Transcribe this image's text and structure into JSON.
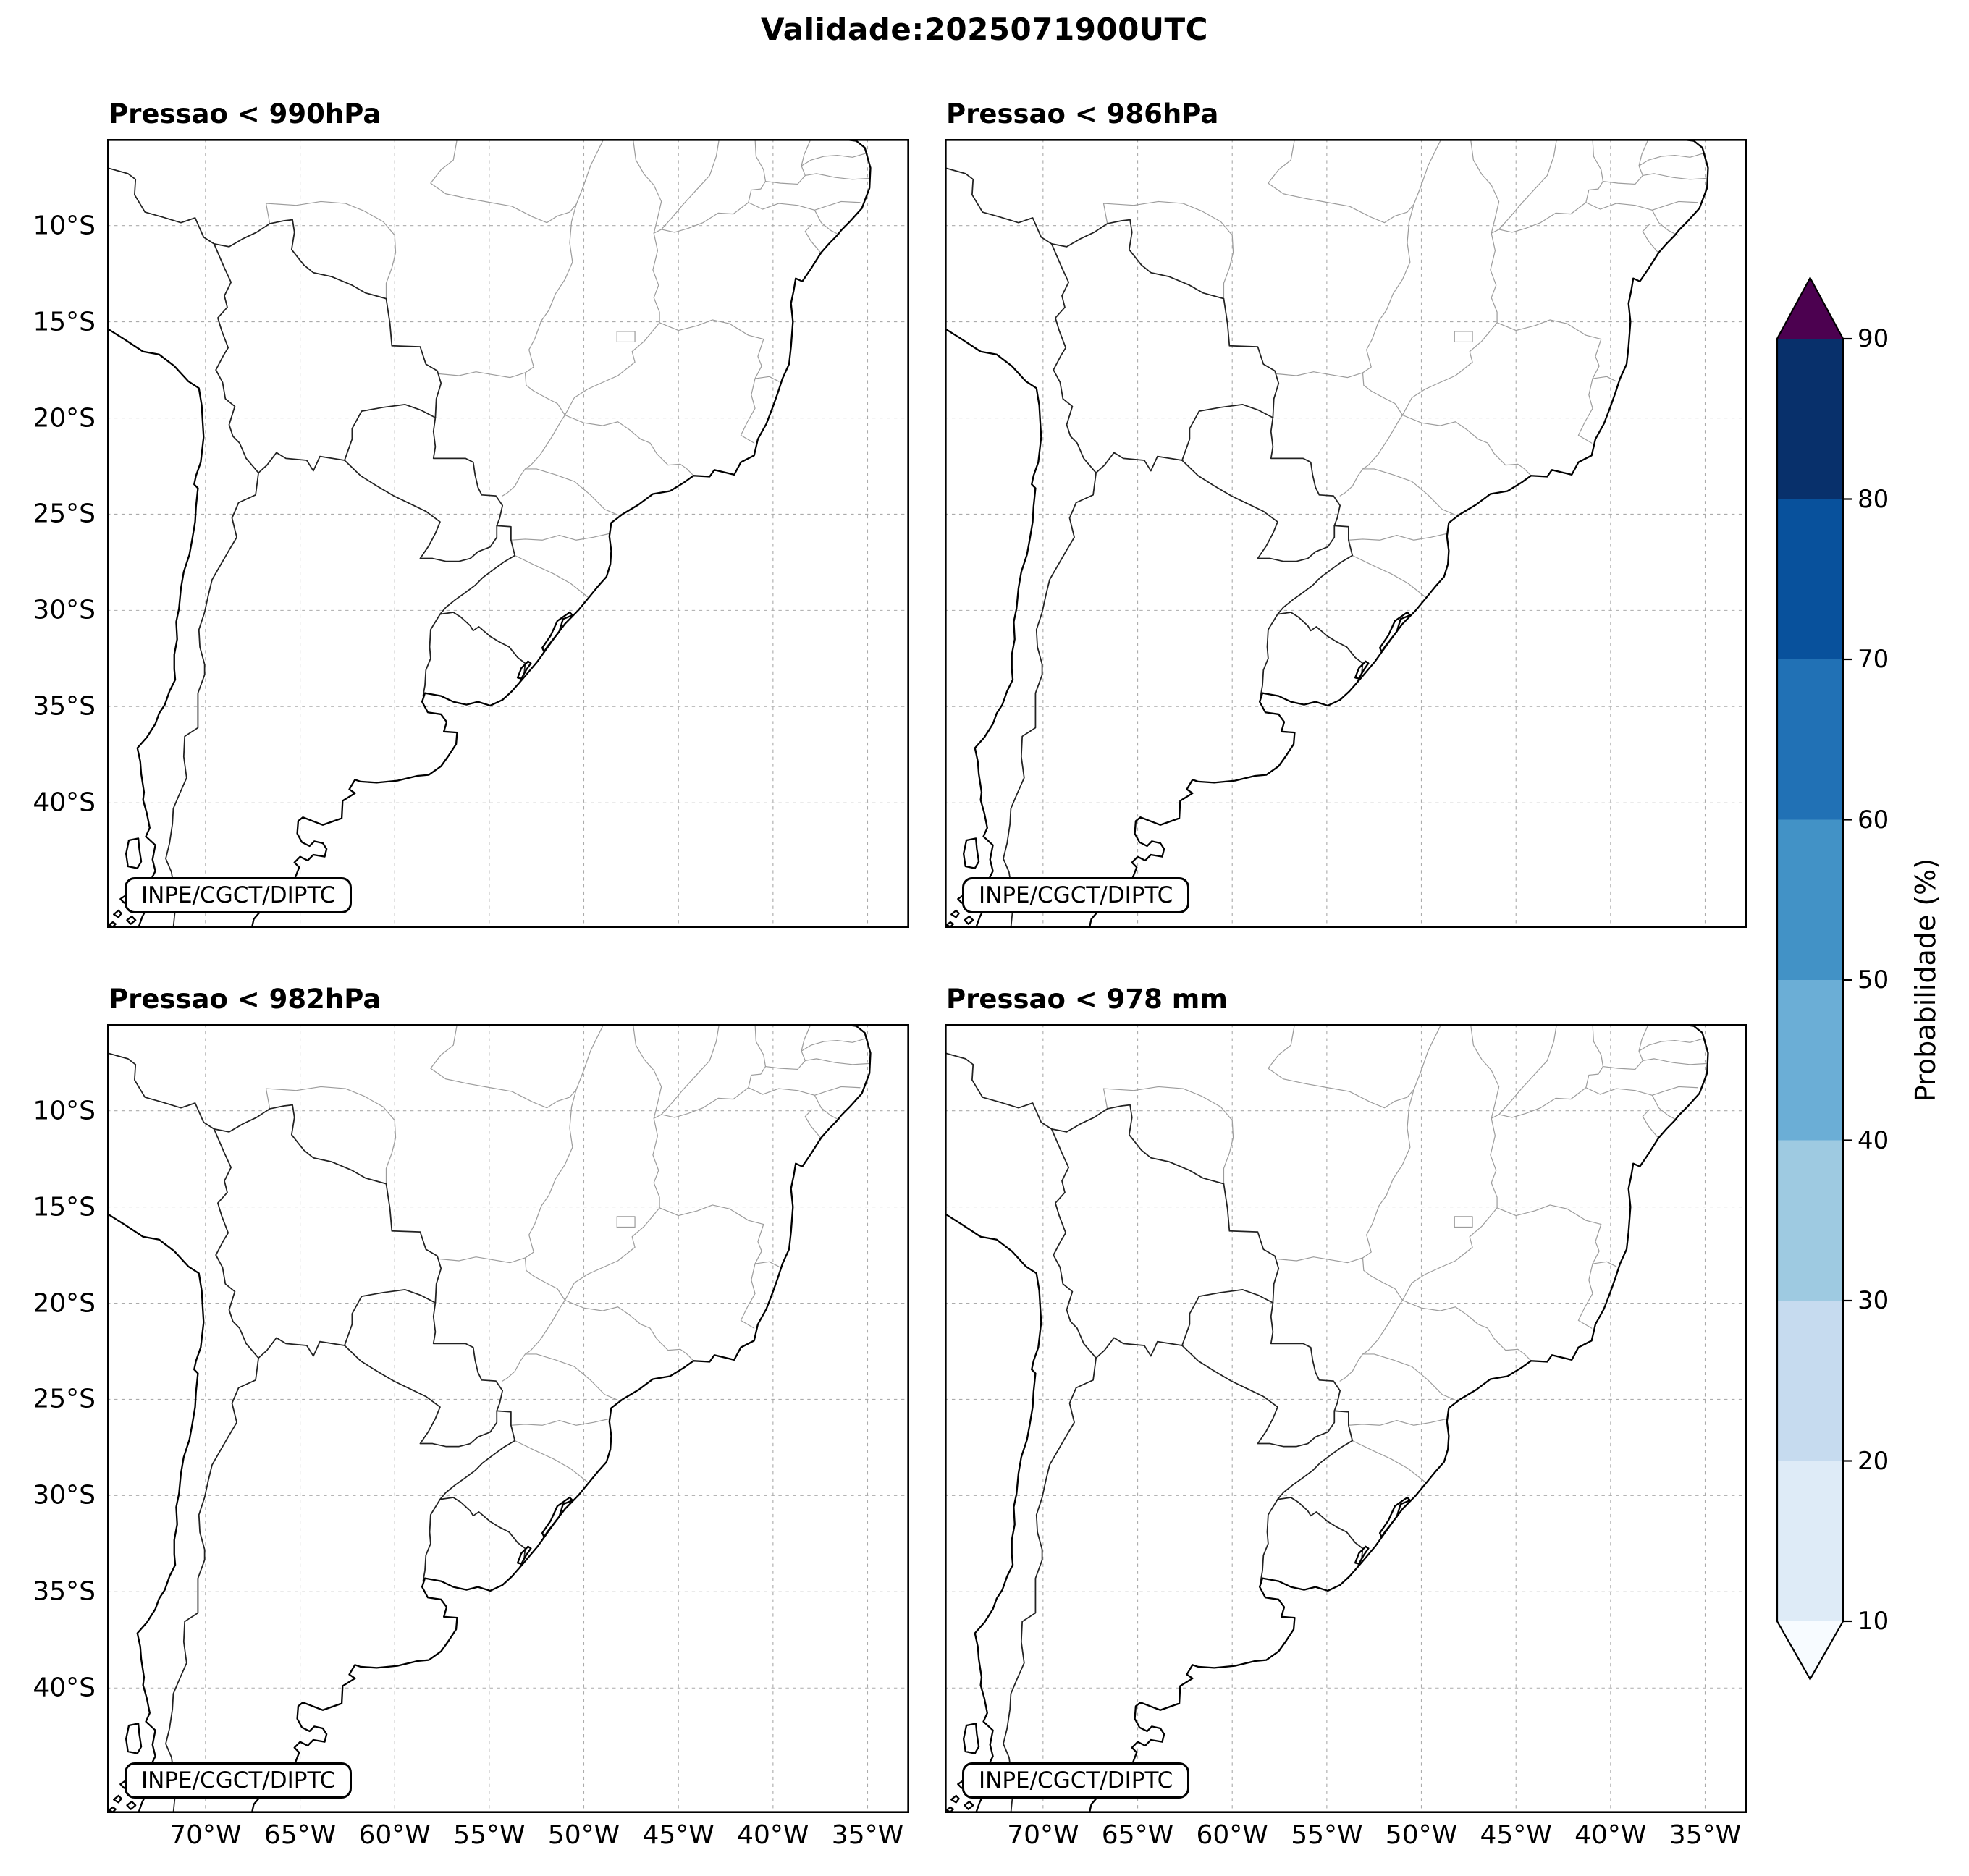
{
  "figure": {
    "title": "Validade:2025071900UTC"
  },
  "panels": [
    {
      "title": "Pressao < 990hPa",
      "watermark": "INPE/CGCT/DIPTC"
    },
    {
      "title": "Pressao < 986hPa",
      "watermark": "INPE/CGCT/DIPTC"
    },
    {
      "title": "Pressao < 982hPa",
      "watermark": "INPE/CGCT/DIPTC"
    },
    {
      "title": "Pressao < 978 mm",
      "watermark": "INPE/CGCT/DIPTC"
    }
  ],
  "axes": {
    "y_ticks": [
      {
        "label": "10°S",
        "deg": -10
      },
      {
        "label": "15°S",
        "deg": -15
      },
      {
        "label": "20°S",
        "deg": -20
      },
      {
        "label": "25°S",
        "deg": -25
      },
      {
        "label": "30°S",
        "deg": -30
      },
      {
        "label": "35°S",
        "deg": -35
      },
      {
        "label": "40°S",
        "deg": -40
      }
    ],
    "x_ticks": [
      {
        "label": "70°W",
        "deg": -70
      },
      {
        "label": "65°W",
        "deg": -65
      },
      {
        "label": "60°W",
        "deg": -60
      },
      {
        "label": "55°W",
        "deg": -55
      },
      {
        "label": "50°W",
        "deg": -50
      },
      {
        "label": "45°W",
        "deg": -45
      },
      {
        "label": "40°W",
        "deg": -40
      },
      {
        "label": "35°W",
        "deg": -35
      }
    ]
  },
  "colorbar": {
    "label": "Probabilidade (%)",
    "ticks": [
      "90",
      "80",
      "70",
      "60",
      "50",
      "40",
      "30",
      "20",
      "10"
    ],
    "segment_colors_top_to_bottom": [
      "#08306b",
      "#08519c",
      "#2171b5",
      "#4292c6",
      "#6baed6",
      "#9ecae1",
      "#c6dbef",
      "#deebf7"
    ],
    "over_color": "#4c0150",
    "under_color": "#f7fbff",
    "outline_color": "#000000"
  }
}
